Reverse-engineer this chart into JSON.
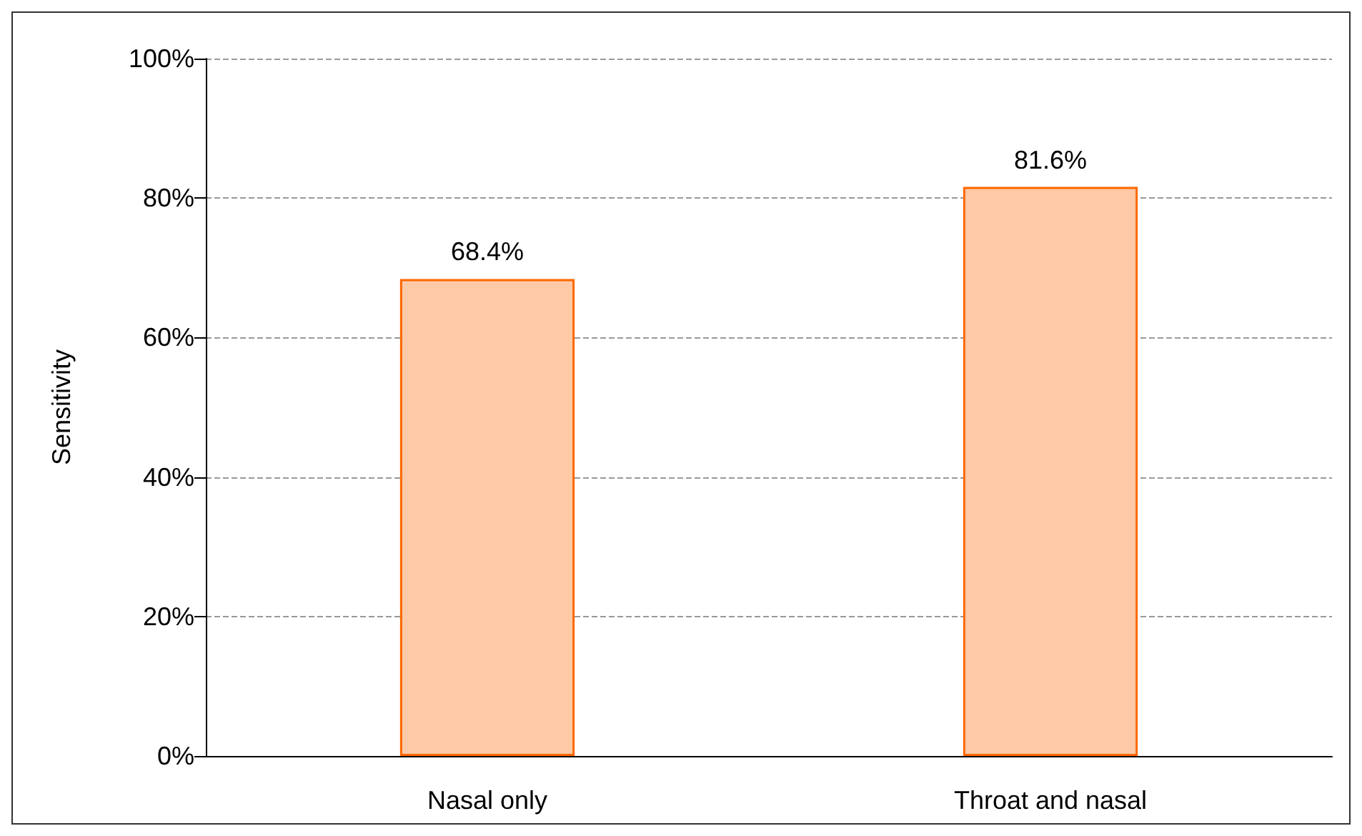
{
  "chart_data": {
    "type": "bar",
    "ylabel": "Sensitivity",
    "categories": [
      "Nasal only",
      "Throat and nasal"
    ],
    "series": [
      {
        "color": "#fdc9a6",
        "values": [
          68.4,
          81.6
        ],
        "value_labels": [
          "68.4%",
          "81.6%"
        ]
      }
    ],
    "ylim": [
      0,
      100
    ],
    "yticks": [
      {
        "value": 0,
        "label": "0%"
      },
      {
        "value": 20,
        "label": "20%"
      },
      {
        "value": 40,
        "label": "40%"
      },
      {
        "value": 60,
        "label": "60%"
      },
      {
        "value": 80,
        "label": "80%"
      },
      {
        "value": 100,
        "label": "100%"
      }
    ],
    "grid": "y"
  }
}
